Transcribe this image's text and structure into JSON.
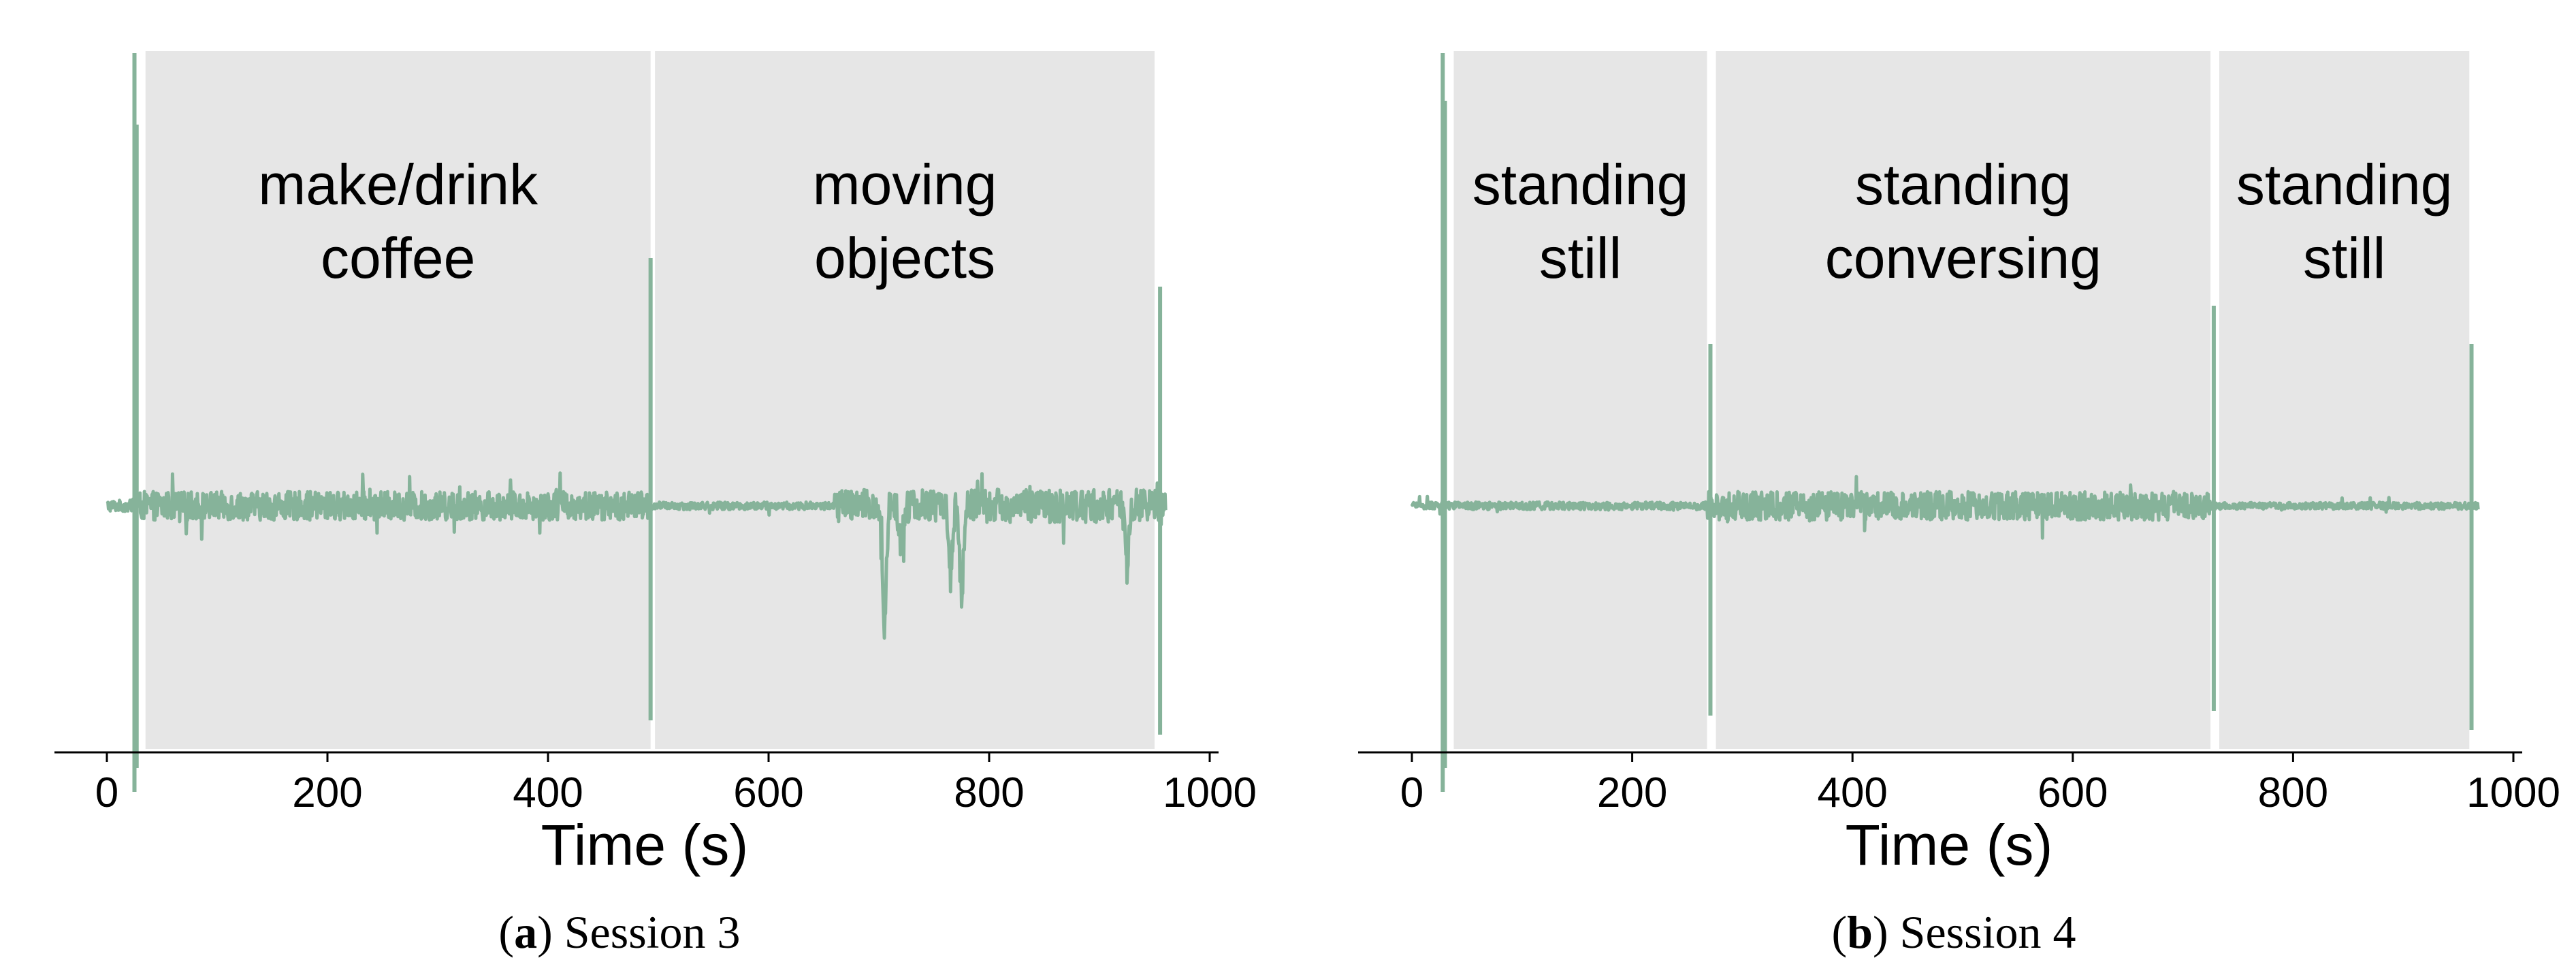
{
  "chart_data": [
    {
      "type": "line",
      "xlabel": "Time (s)",
      "xlim": [
        -50,
        1010
      ],
      "xticks": [
        0,
        200,
        400,
        600,
        800,
        1000
      ],
      "ylim": [
        -1.0,
        1.0
      ],
      "caption": {
        "letter": "a",
        "text": " Session 3"
      },
      "line_color": "#86b39a",
      "shade_color": "#e6e6e6",
      "regions": [
        {
          "start": 35,
          "end": 493,
          "label": [
            "make/drink",
            "coffee"
          ]
        },
        {
          "start": 497,
          "end": 950,
          "label": [
            "moving",
            "objects"
          ]
        }
      ],
      "spikes": [
        {
          "t": 25,
          "high": 0.95,
          "low": -0.6
        },
        {
          "t": 27,
          "high": 0.8,
          "low": -0.55
        },
        {
          "t": 493,
          "high": 0.52,
          "low": -0.45
        },
        {
          "t": 955,
          "high": 0.46,
          "low": -0.48
        }
      ],
      "dips": [
        {
          "t": 705,
          "depth": -0.28
        },
        {
          "t": 720,
          "depth": -0.08
        },
        {
          "t": 765,
          "depth": -0.15
        },
        {
          "t": 775,
          "depth": -0.2
        },
        {
          "t": 925,
          "depth": -0.13
        }
      ],
      "signal": {
        "start": 0,
        "end": 960,
        "noise": [
          [
            0,
            30,
            0.012
          ],
          [
            30,
            493,
            0.03
          ],
          [
            493,
            660,
            0.008
          ],
          [
            660,
            960,
            0.035
          ]
        ]
      }
    },
    {
      "type": "line",
      "xlabel": "Time (s)",
      "xlim": [
        -50,
        1010
      ],
      "xticks": [
        0,
        200,
        400,
        600,
        800,
        1000
      ],
      "ylim": [
        -1.0,
        1.0
      ],
      "caption": {
        "letter": "b",
        "text": " Session 4"
      },
      "line_color": "#86b39a",
      "shade_color": "#e6e6e6",
      "regions": [
        {
          "start": 38,
          "end": 268,
          "label": [
            "standing",
            "still"
          ]
        },
        {
          "start": 276,
          "end": 725,
          "label": [
            "standing",
            "conversing"
          ]
        },
        {
          "start": 733,
          "end": 960,
          "label": [
            "standing",
            "still"
          ]
        }
      ],
      "spikes": [
        {
          "t": 28,
          "high": 0.95,
          "low": -0.6
        },
        {
          "t": 30,
          "high": 0.85,
          "low": -0.55
        },
        {
          "t": 271,
          "high": 0.34,
          "low": -0.44
        },
        {
          "t": 728,
          "high": 0.42,
          "low": -0.43
        },
        {
          "t": 962,
          "high": 0.34,
          "low": -0.47
        }
      ],
      "dips": [],
      "signal": {
        "start": 0,
        "end": 968,
        "noise": [
          [
            0,
            38,
            0.008
          ],
          [
            38,
            268,
            0.008
          ],
          [
            268,
            725,
            0.03
          ],
          [
            725,
            968,
            0.007
          ]
        ]
      }
    }
  ]
}
